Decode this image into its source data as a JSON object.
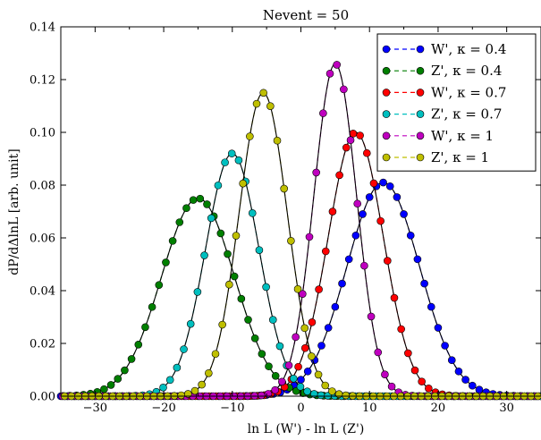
{
  "chart_data": {
    "type": "line",
    "title": "Nevent = 50",
    "xlabel": "ln L (W') - ln L (Z')",
    "ylabel": "dP/dΔlnL [arb. unit]",
    "xlim": [
      -35,
      35
    ],
    "ylim": [
      0,
      0.14
    ],
    "xticks": [
      "−30",
      "−20",
      "−10",
      "0",
      "10",
      "20",
      "30"
    ],
    "xtick_values": [
      -30,
      -20,
      -10,
      0,
      10,
      20,
      30
    ],
    "yticks": [
      "0.00",
      "0.02",
      "0.04",
      "0.06",
      "0.08",
      "0.10",
      "0.12",
      "0.14"
    ],
    "ytick_values": [
      0,
      0.02,
      0.04,
      0.06,
      0.08,
      0.1,
      0.12,
      0.14
    ],
    "grid": false,
    "legend_position": "top-right",
    "series": [
      {
        "name": "W', κ = 0.4",
        "color": "#0000ff",
        "mean": 12.0,
        "sigma": 5.3,
        "peak": 0.081
      },
      {
        "name": "Z', κ = 0.4",
        "color": "#007f00",
        "mean": -15.0,
        "sigma": 5.3,
        "peak": 0.075
      },
      {
        "name": "W', κ = 0.7",
        "color": "#ff0000",
        "mean": 8.0,
        "sigma": 4.0,
        "peak": 0.1
      },
      {
        "name": "Z', κ = 0.7",
        "color": "#00bfbf",
        "mean": -10.0,
        "sigma": 3.9,
        "peak": 0.092
      },
      {
        "name": "W', κ = 1",
        "color": "#bf00bf",
        "mean": 5.0,
        "sigma": 3.1,
        "peak": 0.126
      },
      {
        "name": "Z', κ = 1",
        "color": "#bfbf00",
        "mean": -5.5,
        "sigma": 3.5,
        "peak": 0.115
      }
    ]
  }
}
